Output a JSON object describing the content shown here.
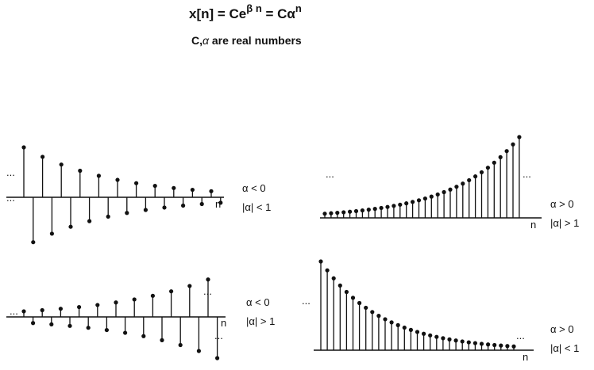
{
  "header": {
    "equation_lhs": "x[n] = Ce",
    "equation_exp": "β n",
    "equation_rhs": " = Cα",
    "equation_rhs_exp": "n",
    "subtitle_prefix": "C,",
    "subtitle_alpha": "α",
    "subtitle_suffix": " are real numbers"
  },
  "panels": [
    {
      "id": "top-left",
      "condition_sign": "α < 0",
      "condition_mag": "|α| < 1",
      "axis_label": "n",
      "left_ellipsis": "...",
      "right_ellipsis": "...",
      "ratio": -0.9,
      "count": 22
    },
    {
      "id": "top-right",
      "condition_sign": "α > 0",
      "condition_mag": "|α| > 1",
      "axis_label": "n",
      "left_ellipsis": "...",
      "right_ellipsis": "...",
      "ratio": 1.1,
      "count": 32
    },
    {
      "id": "bottom-left",
      "condition_sign": "α < 0",
      "condition_mag": "|α| > 1",
      "axis_label": "n",
      "left_ellipsis": "...",
      "right_ellipsis": "...",
      "ratio": -1.1,
      "count": 22
    },
    {
      "id": "bottom-right",
      "condition_sign": "α > 0",
      "condition_mag": "|α| < 1",
      "axis_label": "n",
      "left_ellipsis": "...",
      "right_ellipsis": "...",
      "ratio": 0.9,
      "count": 31
    }
  ]
}
